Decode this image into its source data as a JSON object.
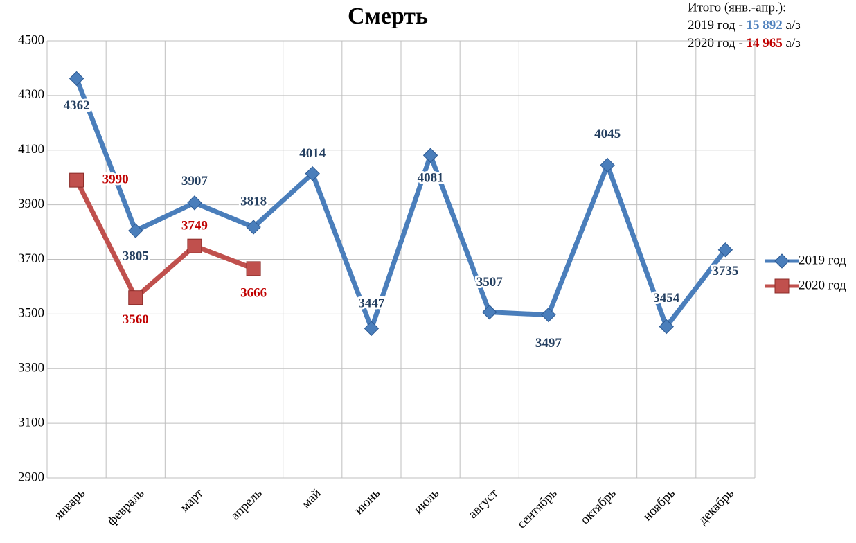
{
  "chart_data": {
    "type": "line",
    "title": "Смерть",
    "categories": [
      "январь",
      "февраль",
      "март",
      "апрель",
      "май",
      "июнь",
      "июль",
      "август",
      "сентябрь",
      "октябрь",
      "ноябрь",
      "декабрь"
    ],
    "series": [
      {
        "name": "2019 год",
        "color": "#4a7ebb",
        "label_color": "#243f60",
        "marker": "diamond",
        "values": [
          4362,
          3805,
          3907,
          3818,
          4014,
          3447,
          4081,
          3507,
          3497,
          4045,
          3454,
          3735
        ]
      },
      {
        "name": "2020 год",
        "color": "#c0504d",
        "label_color": "#c00000",
        "marker": "square",
        "values": [
          3990,
          3560,
          3749,
          3666,
          null,
          null,
          null,
          null,
          null,
          null,
          null,
          null
        ]
      }
    ],
    "ylim": [
      2900,
      4500
    ],
    "yticks": [
      2900,
      3100,
      3300,
      3500,
      3700,
      3900,
      4100,
      4300,
      4500
    ],
    "grid": true,
    "legend": "right",
    "annotation": {
      "heading": "Итого (янв.-апр.):",
      "lines": [
        {
          "prefix": "2019 год - ",
          "total": "15 892",
          "suffix": " а/з",
          "color": "#4f81bd"
        },
        {
          "prefix": "2020 год - ",
          "total": "14 965",
          "suffix": " а/з",
          "color": "#c00000"
        }
      ]
    }
  }
}
